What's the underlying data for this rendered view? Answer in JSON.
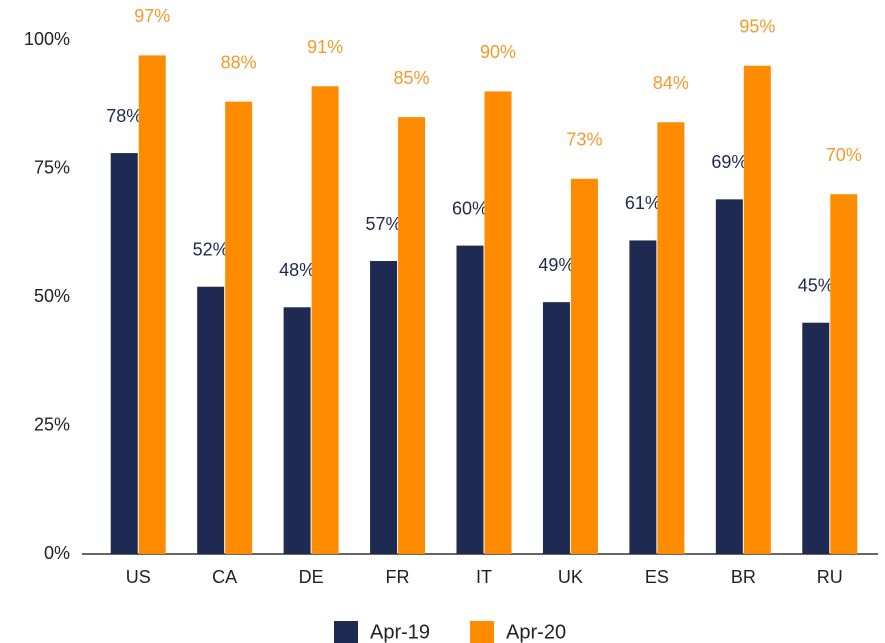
{
  "chart_data": {
    "type": "bar",
    "categories": [
      "US",
      "CA",
      "DE",
      "FR",
      "IT",
      "UK",
      "ES",
      "BR",
      "RU"
    ],
    "series": [
      {
        "name": "Apr-19",
        "color": "#1e2a52",
        "label_color": "#1e2a52",
        "values": [
          78,
          52,
          48,
          57,
          60,
          49,
          61,
          69,
          45
        ],
        "value_labels": [
          "78%",
          "52%",
          "48%",
          "57%",
          "60%",
          "49%",
          "61%",
          "69%",
          "45%"
        ]
      },
      {
        "name": "Apr-20",
        "color": "#ff8c00",
        "label_color": "#f39a2b",
        "values": [
          97,
          88,
          91,
          85,
          90,
          73,
          84,
          95,
          70
        ],
        "value_labels": [
          "97%",
          "88%",
          "91%",
          "85%",
          "90%",
          "73%",
          "84%",
          "95%",
          "70%"
        ]
      }
    ],
    "ylim": [
      0,
      100
    ],
    "yticks": [
      {
        "value": 0,
        "label": "0%"
      },
      {
        "value": 25,
        "label": "25%"
      },
      {
        "value": 50,
        "label": "50%"
      },
      {
        "value": 75,
        "label": "75%"
      },
      {
        "value": 100,
        "label": "100%"
      }
    ],
    "grid": false
  }
}
